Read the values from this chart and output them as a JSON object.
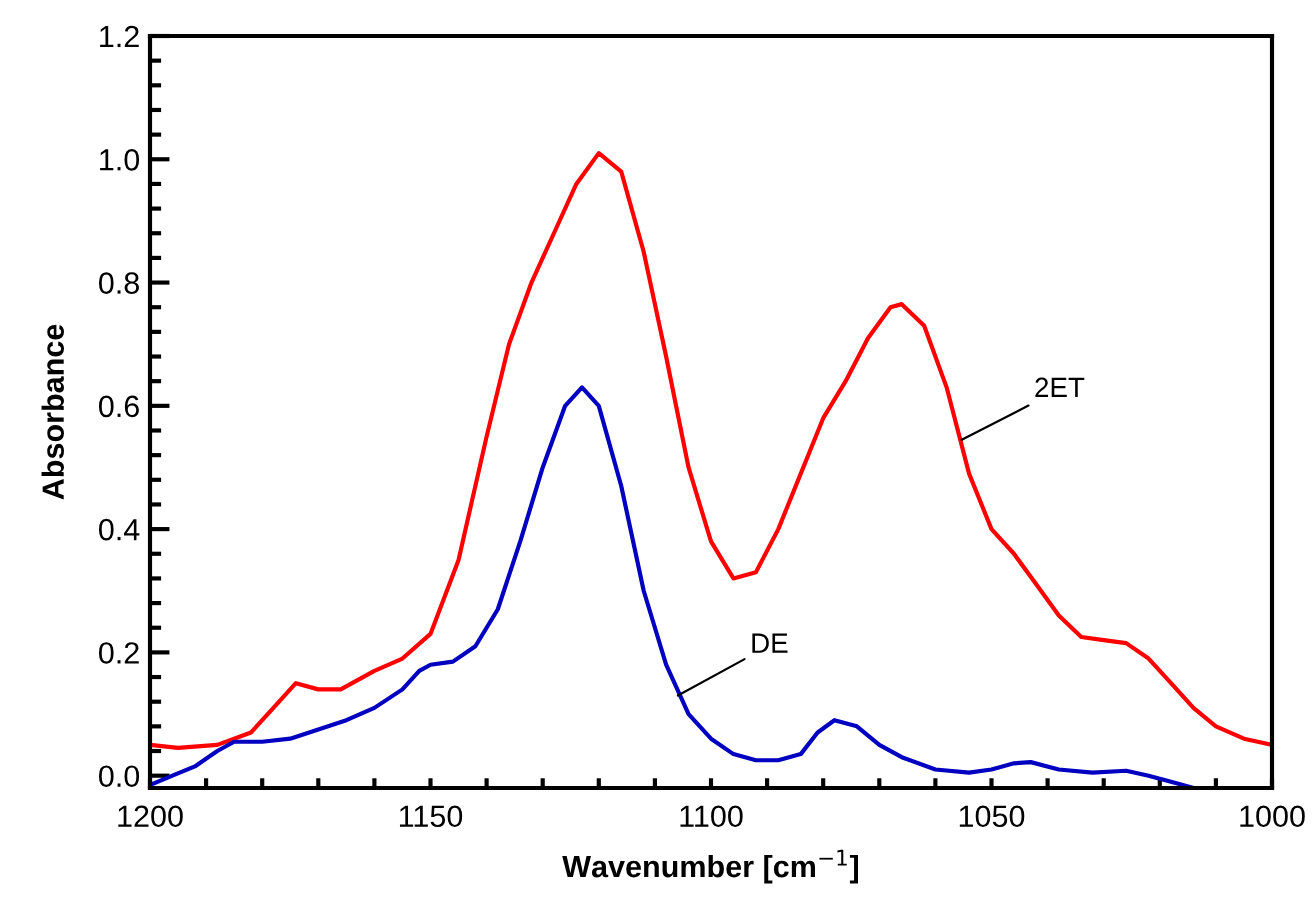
{
  "chart_data": {
    "type": "line",
    "xlabel": "Wavenumber [cm$^{−1}$]",
    "ylabel": "Absorbance",
    "xlim": [
      1200,
      1000
    ],
    "ylim": [
      -0.02,
      1.2
    ],
    "xticks": [
      1200,
      {
        "value": 1190,
        "label": null
      },
      {
        "value": 1180,
        "label": null
      },
      {
        "value": 1170,
        "label": null
      },
      {
        "value": 1160,
        "label": null
      },
      1150,
      {
        "value": 1140,
        "label": null
      },
      {
        "value": 1130,
        "label": null
      },
      {
        "value": 1120,
        "label": null
      },
      {
        "value": 1110,
        "label": null
      },
      1100,
      {
        "value": 1090,
        "label": null
      },
      {
        "value": 1080,
        "label": null
      },
      {
        "value": 1070,
        "label": null
      },
      {
        "value": 1060,
        "label": null
      },
      1050,
      {
        "value": 1040,
        "label": null
      },
      {
        "value": 1030,
        "label": null
      },
      {
        "value": 1020,
        "label": null
      },
      {
        "value": 1010,
        "label": null
      },
      1000
    ],
    "yticks": [
      {
        "value": 0,
        "label": "0.0"
      },
      {
        "value": 0.04,
        "label": null
      },
      {
        "value": 0.08,
        "label": null
      },
      {
        "value": 0.12,
        "label": null
      },
      {
        "value": 0.16,
        "label": null
      },
      {
        "value": 0.2,
        "label": "0.2"
      },
      {
        "value": 0.24,
        "label": null
      },
      {
        "value": 0.28,
        "label": null
      },
      {
        "value": 0.32,
        "label": null
      },
      {
        "value": 0.36,
        "label": null
      },
      {
        "value": 0.4,
        "label": "0.4"
      },
      {
        "value": 0.44,
        "label": null
      },
      {
        "value": 0.48,
        "label": null
      },
      {
        "value": 0.52,
        "label": null
      },
      {
        "value": 0.56,
        "label": null
      },
      {
        "value": 0.6,
        "label": "0.6"
      },
      {
        "value": 0.64,
        "label": null
      },
      {
        "value": 0.68,
        "label": null
      },
      {
        "value": 0.72,
        "label": null
      },
      {
        "value": 0.76,
        "label": null
      },
      {
        "value": 0.8,
        "label": "0.8"
      },
      {
        "value": 0.84,
        "label": null
      },
      {
        "value": 0.88,
        "label": null
      },
      {
        "value": 0.92,
        "label": null
      },
      {
        "value": 0.96,
        "label": null
      },
      {
        "value": 1.0,
        "label": "1.0"
      },
      {
        "value": 1.04,
        "label": null
      },
      {
        "value": 1.08,
        "label": null
      },
      {
        "value": 1.12,
        "label": null
      },
      {
        "value": 1.16,
        "label": null
      },
      {
        "value": 1.2,
        "label": "1.2"
      }
    ],
    "grid": false,
    "legend": false,
    "marker": "none",
    "line_style": "solid",
    "series": [
      {
        "color": "#ff0000",
        "x": [
          1200,
          1195,
          1188,
          1182,
          1178,
          1174,
          1170,
          1166,
          1160,
          1155,
          1150,
          1145,
          1140,
          1136,
          1132,
          1128,
          1124,
          1120,
          1116,
          1112,
          1108,
          1104,
          1100,
          1096,
          1092,
          1088,
          1084,
          1080,
          1076,
          1072,
          1068,
          1066,
          1062,
          1058,
          1054,
          1050,
          1046,
          1042,
          1038,
          1034,
          1030,
          1026,
          1022,
          1018,
          1014,
          1010,
          1005,
          1000
        ],
        "values": [
          0.05,
          0.045,
          0.05,
          0.07,
          0.11,
          0.15,
          0.14,
          0.14,
          0.17,
          0.19,
          0.23,
          0.35,
          0.55,
          0.7,
          0.8,
          0.88,
          0.96,
          1.01,
          0.98,
          0.85,
          0.68,
          0.5,
          0.38,
          0.32,
          0.33,
          0.4,
          0.49,
          0.58,
          0.64,
          0.71,
          0.76,
          0.765,
          0.73,
          0.63,
          0.49,
          0.4,
          0.36,
          0.31,
          0.26,
          0.225,
          0.22,
          0.215,
          0.19,
          0.15,
          0.11,
          0.08,
          0.06,
          0.05
        ]
      },
      {
        "color": "#0000c0",
        "x": [
          1200,
          1196,
          1192,
          1188,
          1185,
          1180,
          1175,
          1170,
          1165,
          1160,
          1155,
          1152,
          1150,
          1146,
          1142,
          1138,
          1134,
          1130,
          1126,
          1123,
          1120,
          1116,
          1112,
          1108,
          1104,
          1100,
          1096,
          1092,
          1088,
          1084,
          1081,
          1078,
          1074,
          1070,
          1066,
          1060,
          1054,
          1050,
          1046,
          1043,
          1038,
          1032,
          1026,
          1022,
          1018,
          1014
        ],
        "values": [
          -0.015,
          0.0,
          0.015,
          0.04,
          0.055,
          0.055,
          0.06,
          0.075,
          0.09,
          0.11,
          0.14,
          0.17,
          0.18,
          0.185,
          0.21,
          0.27,
          0.38,
          0.5,
          0.6,
          0.63,
          0.6,
          0.47,
          0.3,
          0.18,
          0.1,
          0.06,
          0.035,
          0.025,
          0.025,
          0.035,
          0.07,
          0.09,
          0.08,
          0.05,
          0.03,
          0.01,
          0.005,
          0.01,
          0.02,
          0.022,
          0.01,
          0.005,
          0.008,
          0.0,
          -0.01,
          -0.02
        ]
      }
    ],
    "annotations": [
      {
        "text": "2ET",
        "x": 1055.3,
        "y": 0.545
      },
      {
        "text": "DE",
        "x": 1105.9,
        "y": 0.13
      }
    ]
  }
}
